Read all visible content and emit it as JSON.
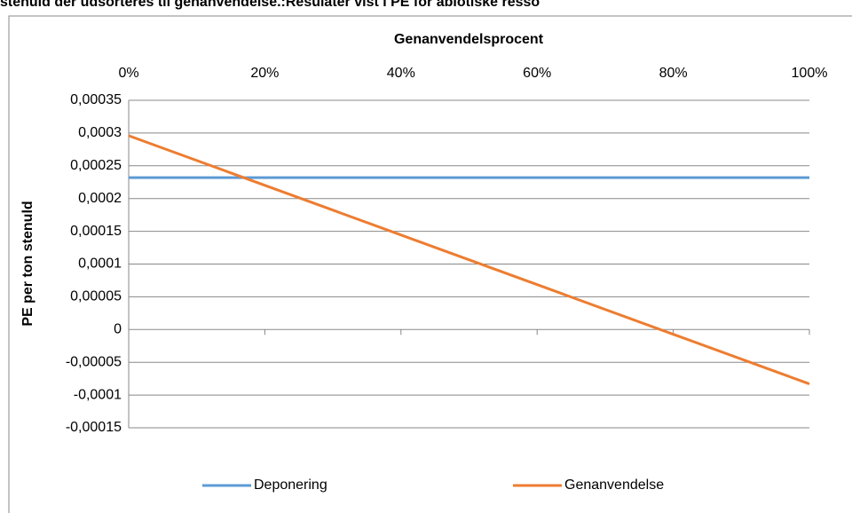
{
  "chart_data": {
    "type": "line",
    "title": "stenuld der udsorteres til genanvendelse.:Resulater vist i PE for abiotiske resso",
    "xlabel": "Genanvendelsprocent",
    "ylabel": "PE per ton stenuld",
    "x": [
      0,
      100
    ],
    "series": [
      {
        "name": "Deponering",
        "color": "#5b9bd5",
        "values": [
          0.000232,
          0.000232
        ]
      },
      {
        "name": "Genanvendelse",
        "color": "#ed7d31",
        "values": [
          0.000296,
          -8.3e-05
        ]
      }
    ],
    "xlim": [
      0,
      100
    ],
    "xticks": [
      {
        "value": 0,
        "label": "0%"
      },
      {
        "value": 20,
        "label": "20%"
      },
      {
        "value": 40,
        "label": "40%"
      },
      {
        "value": 60,
        "label": "60%"
      },
      {
        "value": 80,
        "label": "80%"
      },
      {
        "value": 100,
        "label": "100%"
      }
    ],
    "ylim": [
      -0.00015,
      0.00035
    ],
    "yticks": [
      {
        "value": 0.00035,
        "label": "0,00035"
      },
      {
        "value": 0.0003,
        "label": "0,0003"
      },
      {
        "value": 0.00025,
        "label": "0,00025"
      },
      {
        "value": 0.0002,
        "label": "0,0002"
      },
      {
        "value": 0.00015,
        "label": "0,00015"
      },
      {
        "value": 0.0001,
        "label": "0,0001"
      },
      {
        "value": 5e-05,
        "label": "0,00005"
      },
      0,
      {
        "value": -5e-05,
        "label": "-0,00005"
      },
      {
        "value": -0.0001,
        "label": "-0,0001"
      },
      {
        "value": -0.00015,
        "label": "-0,00015"
      }
    ],
    "grid": true,
    "legend": "bottom"
  }
}
